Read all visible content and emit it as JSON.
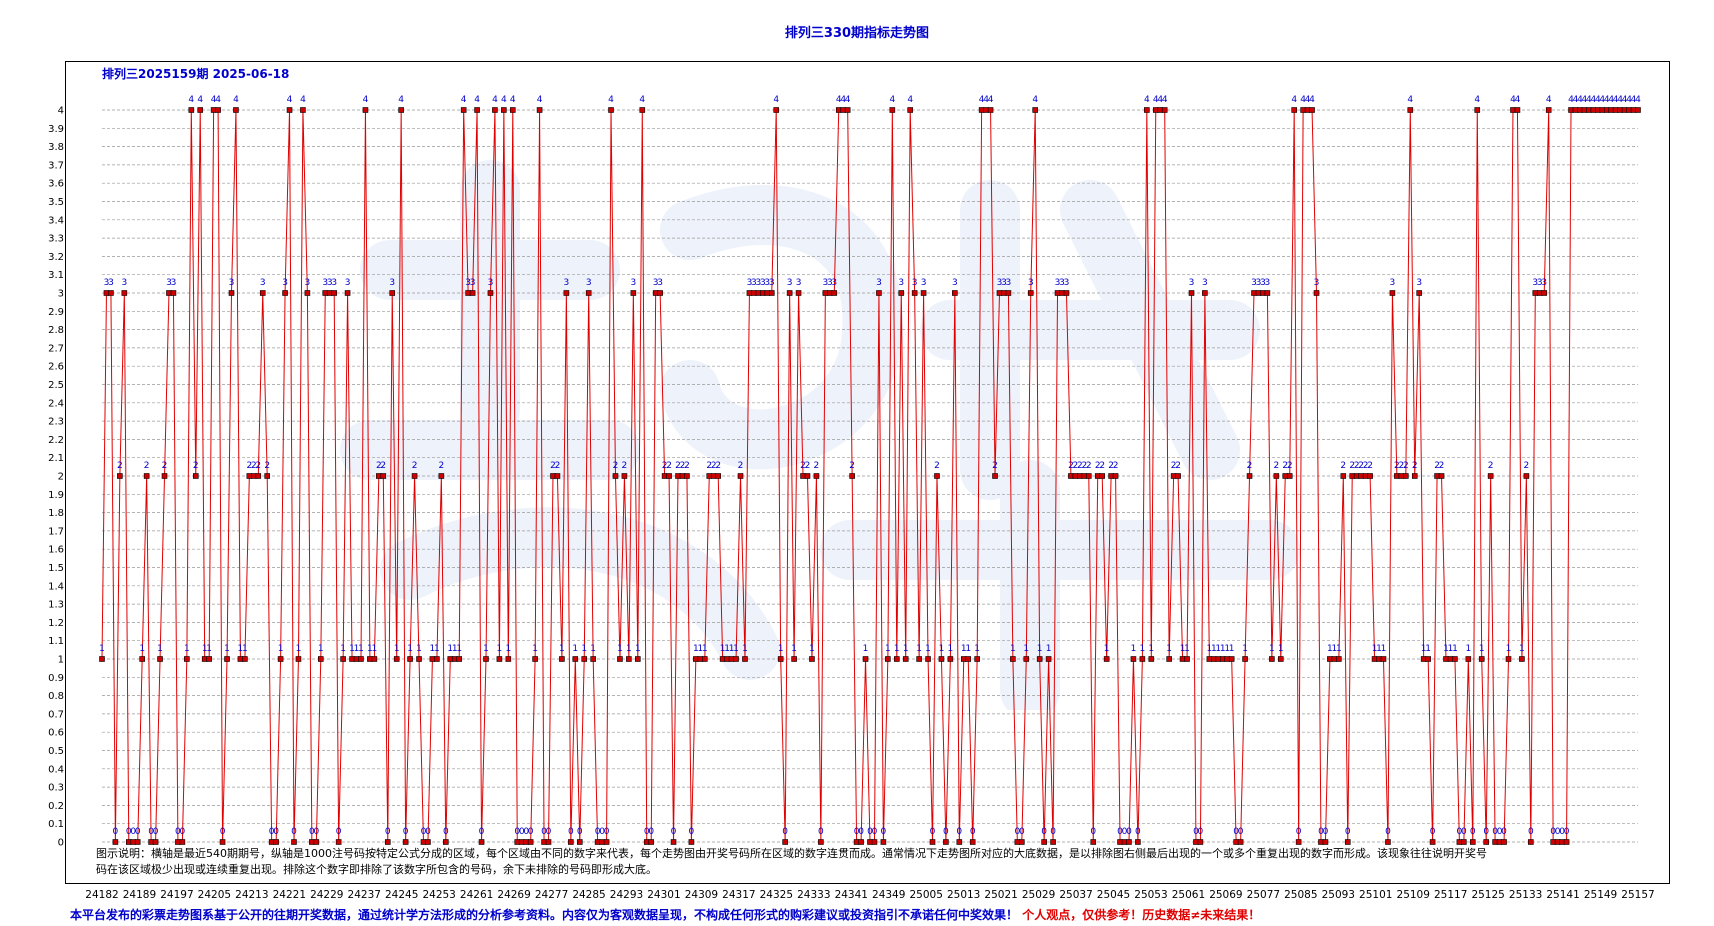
{
  "page": {
    "title": "排列三330期指标走势图",
    "subtitle": "排列三2025159期  2025-06-18",
    "legend_note": "图示说明：横轴是最近540期期号，纵轴是1000注号码按特定公式分成的区域，每个区域由不同的数字来代表，每个走势图由开奖号码所在区域的数字连贯而成。通常情况下走势图所对应的大底数据，是以排除图右侧最后出现的一个或多个重复出现的数字而形成。该现象往往说明开奖号码在该区域极少出现或连续重复出现。排除这个数字即排除了该数字所包含的号码，余下未排除的号码即形成大底。",
    "disclaimer_main": "本平台发布的彩票走势图系基于公开的往期开奖数据，通过统计学方法形成的分析参考资料。内容仅为客观数据呈现，不构成任何形式的购彩建议或投资指引不承诺任何中奖效果！",
    "disclaimer_red": "个人观点，仅供参考！历史数据≠未来结果！"
  },
  "colors": {
    "line": "#e00000",
    "marker_fill": "#cc0000",
    "marker_stroke": "#000000",
    "point_label": "#0000cc",
    "grid": "#999999",
    "axis_text": "#000000"
  },
  "chart_data": {
    "type": "line",
    "title": "排列三330期指标走势图",
    "ylim": [
      0,
      4
    ],
    "y_ticks": [
      "0",
      "0.1",
      "0.2",
      "0.3",
      "0.4",
      "0.5",
      "0.6",
      "0.7",
      "0.8",
      "0.9",
      "1",
      "1.1",
      "1.2",
      "1.3",
      "1.4",
      "1.5",
      "1.6",
      "1.7",
      "1.8",
      "1.9",
      "2",
      "2.1",
      "2.2",
      "2.3",
      "2.4",
      "2.5",
      "2.6",
      "2.7",
      "2.8",
      "2.9",
      "3",
      "3.1",
      "3.2",
      "3.3",
      "3.4",
      "3.5",
      "3.6",
      "3.7",
      "3.8",
      "3.9",
      "4"
    ],
    "grid": true,
    "x_tick_labels": [
      "24182",
      "24189",
      "24197",
      "24205",
      "24213",
      "24221",
      "24229",
      "24237",
      "24245",
      "24253",
      "24261",
      "24269",
      "24277",
      "24285",
      "24293",
      "24301",
      "24309",
      "24317",
      "24325",
      "24333",
      "24341",
      "24349",
      "25005",
      "25013",
      "25021",
      "25029",
      "25037",
      "25045",
      "25053",
      "25061",
      "25069",
      "25077",
      "25085",
      "25093",
      "25101",
      "25109",
      "25117",
      "25125",
      "25133",
      "25141",
      "25149",
      "25157"
    ],
    "values": [
      1,
      3,
      3,
      0,
      2,
      3,
      0,
      0,
      0,
      1,
      2,
      0,
      0,
      1,
      2,
      3,
      3,
      0,
      0,
      1,
      4,
      2,
      4,
      1,
      1,
      4,
      4,
      0,
      1,
      3,
      4,
      1,
      1,
      2,
      2,
      2,
      3,
      2,
      0,
      0,
      1,
      3,
      4,
      0,
      1,
      4,
      3,
      0,
      0,
      1,
      3,
      3,
      3,
      0,
      1,
      3,
      1,
      1,
      1,
      4,
      1,
      1,
      2,
      2,
      0,
      3,
      1,
      4,
      0,
      1,
      2,
      1,
      0,
      0,
      1,
      1,
      2,
      0,
      1,
      1,
      1,
      4,
      3,
      3,
      4,
      0,
      1,
      3,
      4,
      1,
      4,
      1,
      4,
      0,
      0,
      0,
      0,
      1,
      4,
      0,
      0,
      2,
      2,
      1,
      3,
      0,
      1,
      0,
      1,
      3,
      1,
      0,
      0,
      0,
      4,
      2,
      1,
      2,
      1,
      3,
      1,
      4,
      0,
      0,
      3,
      3,
      2,
      2,
      0,
      2,
      2,
      2,
      0,
      1,
      1,
      1,
      2,
      2,
      2,
      1,
      1,
      1,
      1,
      2,
      1,
      3,
      3,
      3,
      3,
      3,
      3,
      4,
      1,
      0,
      3,
      1,
      3,
      2,
      2,
      1,
      2,
      0,
      3,
      3,
      3,
      4,
      4,
      4,
      2,
      0,
      0,
      1,
      0,
      0,
      3,
      0,
      1,
      4,
      1,
      3,
      1,
      4,
      3,
      1,
      3,
      1,
      0,
      2,
      1,
      0,
      1,
      3,
      0,
      1,
      1,
      0,
      1,
      4,
      4,
      4,
      2,
      3,
      3,
      3,
      1,
      0,
      0,
      1,
      3,
      4,
      1,
      0,
      1,
      0,
      3,
      3,
      3,
      2,
      2,
      2,
      2,
      2,
      0,
      2,
      2,
      1,
      2,
      2,
      0,
      0,
      0,
      1,
      0,
      1,
      4,
      1,
      4,
      4,
      4,
      1,
      2,
      2,
      1,
      1,
      3,
      0,
      0,
      3,
      1,
      1,
      1,
      1,
      1,
      1,
      0,
      0,
      1,
      2,
      3,
      3,
      3,
      3,
      1,
      2,
      1,
      2,
      2,
      4,
      0,
      4,
      4,
      4,
      3,
      0,
      0,
      1,
      1,
      1,
      2,
      0,
      2,
      2,
      2,
      2,
      2,
      1,
      1,
      1,
      0,
      3,
      2,
      2,
      2,
      4,
      2,
      3,
      1,
      1,
      0,
      2,
      2,
      1,
      1,
      1,
      0,
      0,
      1,
      0,
      4,
      1,
      0,
      2,
      0,
      0,
      0,
      1,
      4,
      4,
      1,
      2,
      0,
      3,
      3,
      3,
      4,
      0,
      0,
      0,
      0,
      4,
      4,
      4,
      4,
      4,
      4,
      4,
      4,
      4,
      4,
      4,
      4,
      4,
      4,
      4,
      4
    ],
    "point_labels": "visible (value of each point)"
  }
}
